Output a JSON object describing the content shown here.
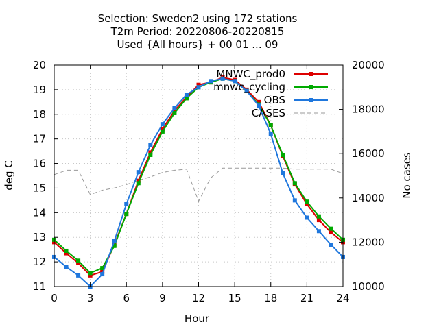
{
  "chart_data": {
    "type": "line",
    "title_lines": [
      "Selection: Sweden2 using   172 stations",
      "T2m   Period: 20220806-20220815",
      "Used {All hours} + 00 01 ... 09"
    ],
    "xlabel": "Hour",
    "ylabel": "deg C",
    "y2label": "No cases",
    "xlim": [
      0,
      24
    ],
    "ylim": [
      11,
      20
    ],
    "y2lim": [
      10000,
      20000
    ],
    "xticks": [
      0,
      3,
      6,
      9,
      12,
      15,
      18,
      21,
      24
    ],
    "yticks": [
      11,
      12,
      13,
      14,
      15,
      16,
      17,
      18,
      19,
      20
    ],
    "y2ticks": [
      10000,
      12000,
      14000,
      16000,
      18000,
      20000
    ],
    "grid": true,
    "legend_position": "top-right",
    "series": [
      {
        "name": "MNWC_prod0",
        "color": "#dd0000",
        "axis": "left",
        "x": [
          0,
          1,
          2,
          3,
          4,
          5,
          6,
          7,
          8,
          9,
          10,
          11,
          12,
          13,
          14,
          15,
          16,
          17,
          18,
          19,
          20,
          21,
          22,
          23,
          24
        ],
        "values": [
          12.8,
          12.35,
          11.95,
          11.45,
          11.6,
          12.7,
          13.95,
          15.3,
          16.45,
          17.4,
          18.15,
          18.7,
          19.2,
          19.3,
          19.5,
          19.4,
          19.0,
          18.5,
          17.55,
          16.3,
          15.15,
          14.35,
          13.7,
          13.2,
          12.8
        ]
      },
      {
        "name": "mnwc_cycling",
        "color": "#00aa00",
        "axis": "left",
        "x": [
          0,
          1,
          2,
          3,
          4,
          5,
          6,
          7,
          8,
          9,
          10,
          11,
          12,
          13,
          14,
          15,
          16,
          17,
          18,
          19,
          20,
          21,
          22,
          23,
          24
        ],
        "values": [
          12.9,
          12.45,
          12.05,
          11.55,
          11.75,
          12.65,
          13.95,
          15.2,
          16.35,
          17.3,
          18.05,
          18.65,
          19.1,
          19.3,
          19.45,
          19.35,
          18.95,
          18.4,
          17.55,
          16.35,
          15.2,
          14.45,
          13.85,
          13.35,
          12.9
        ]
      },
      {
        "name": "OBS",
        "color": "#1f77dd",
        "axis": "left",
        "x": [
          0,
          1,
          2,
          3,
          4,
          5,
          6,
          7,
          8,
          9,
          10,
          11,
          12,
          13,
          14,
          15,
          16,
          17,
          18,
          19,
          20,
          21,
          22,
          23,
          24
        ],
        "values": [
          12.2,
          11.8,
          11.45,
          11.0,
          11.5,
          12.85,
          14.35,
          15.65,
          16.75,
          17.6,
          18.25,
          18.8,
          19.1,
          19.35,
          19.45,
          19.35,
          18.95,
          18.35,
          17.2,
          15.6,
          14.5,
          13.8,
          13.25,
          12.7,
          12.2
        ]
      },
      {
        "name": "CASES",
        "color": "#999999",
        "axis": "right",
        "dashed": true,
        "x": [
          0,
          1,
          2,
          3,
          4,
          5,
          6,
          7,
          8,
          9,
          10,
          11,
          12,
          13,
          14,
          15,
          16,
          17,
          18,
          19,
          20,
          21,
          22,
          23,
          24
        ],
        "values": [
          15050,
          15250,
          15250,
          14150,
          14350,
          14450,
          14600,
          14800,
          14950,
          15150,
          15250,
          15300,
          13850,
          14900,
          15350,
          15350,
          15350,
          15350,
          15350,
          15350,
          15300,
          15300,
          15300,
          15300,
          15100
        ]
      }
    ]
  }
}
